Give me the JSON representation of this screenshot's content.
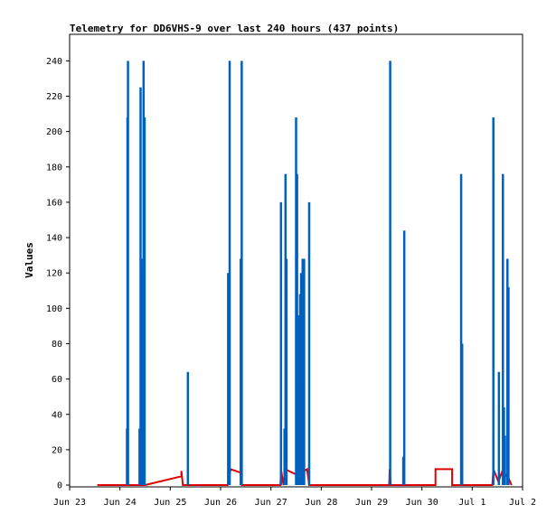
{
  "chart_data": {
    "type": "bar",
    "title": "Telemetry for DD6VHS-9 over last 240 hours (437 points)",
    "xlabel": "",
    "ylabel": "Values",
    "x_tick_labels": [
      "Jun 23",
      "Jun 24",
      "Jun 25",
      "Jun 26",
      "Jun 27",
      "Jun 28",
      "Jun 29",
      "Jun 30",
      "Jul 1",
      "Jul 2"
    ],
    "y_tick_labels": [
      "0",
      "20",
      "40",
      "60",
      "80",
      "100",
      "120",
      "140",
      "160",
      "180",
      "200",
      "220",
      "240"
    ],
    "xlim": [
      0,
      9
    ],
    "ylim": [
      -1,
      255
    ],
    "grid": false,
    "legend": "none",
    "series": [
      {
        "color": "#0060c0",
        "style": "impulse",
        "points": [
          [
            1.14,
            32
          ],
          [
            1.15,
            208
          ],
          [
            1.16,
            240
          ],
          [
            1.39,
            32
          ],
          [
            1.41,
            225
          ],
          [
            1.43,
            128
          ],
          [
            1.45,
            120
          ],
          [
            1.47,
            240
          ],
          [
            1.49,
            208
          ],
          [
            2.35,
            64
          ],
          [
            3.15,
            120
          ],
          [
            3.17,
            80
          ],
          [
            3.18,
            240
          ],
          [
            3.4,
            128
          ],
          [
            3.42,
            240
          ],
          [
            4.2,
            160
          ],
          [
            4.27,
            32
          ],
          [
            4.29,
            176
          ],
          [
            4.31,
            128
          ],
          [
            4.5,
            208
          ],
          [
            4.52,
            176
          ],
          [
            4.54,
            56
          ],
          [
            4.56,
            96
          ],
          [
            4.58,
            108
          ],
          [
            4.6,
            120
          ],
          [
            4.63,
            128
          ],
          [
            4.66,
            128
          ],
          [
            4.76,
            160
          ],
          [
            6.37,
            240
          ],
          [
            6.63,
            16
          ],
          [
            6.65,
            144
          ],
          [
            7.78,
            176
          ],
          [
            7.8,
            80
          ],
          [
            8.42,
            208
          ],
          [
            8.53,
            64
          ],
          [
            8.61,
            176
          ],
          [
            8.63,
            44
          ],
          [
            8.65,
            28
          ],
          [
            8.7,
            128
          ],
          [
            8.72,
            112
          ]
        ]
      },
      {
        "color": "#e00000",
        "style": "line",
        "points": [
          [
            0.55,
            0
          ],
          [
            1.1,
            0
          ],
          [
            1.14,
            0
          ],
          [
            1.17,
            0
          ],
          [
            1.5,
            0
          ],
          [
            2.22,
            5
          ],
          [
            2.22,
            8
          ],
          [
            2.25,
            0
          ],
          [
            3.14,
            0
          ],
          [
            3.2,
            9
          ],
          [
            3.4,
            7
          ],
          [
            3.42,
            0
          ],
          [
            4.19,
            0
          ],
          [
            4.2,
            9
          ],
          [
            4.25,
            0
          ],
          [
            4.28,
            9
          ],
          [
            4.5,
            6
          ],
          [
            4.55,
            9
          ],
          [
            4.6,
            7
          ],
          [
            4.72,
            9
          ],
          [
            4.76,
            0
          ],
          [
            6.35,
            0
          ],
          [
            6.36,
            9
          ],
          [
            6.38,
            0
          ],
          [
            7.27,
            0
          ],
          [
            7.27,
            9
          ],
          [
            7.6,
            9
          ],
          [
            7.6,
            0
          ],
          [
            8.4,
            0
          ],
          [
            8.42,
            9
          ],
          [
            8.52,
            2
          ],
          [
            8.6,
            8
          ],
          [
            8.72,
            4
          ],
          [
            8.78,
            0
          ]
        ]
      }
    ]
  }
}
